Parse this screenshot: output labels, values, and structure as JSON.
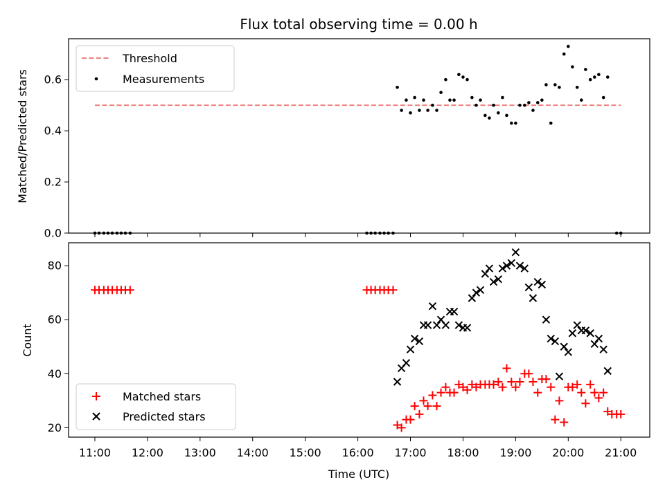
{
  "chart_data": [
    {
      "type": "scatter",
      "title": "Flux total observing time = 0.00 h",
      "xlabel": "",
      "ylabel": "Matched/Predicted stars",
      "xlim": [
        10.5,
        21.55
      ],
      "ylim": [
        0.0,
        0.76
      ],
      "yticks": [
        0.0,
        0.2,
        0.4,
        0.6
      ],
      "ytick_labels": [
        "0.0",
        "0.2",
        "0.4",
        "0.6"
      ],
      "legend_position": "upper-left",
      "threshold": {
        "name": "Threshold",
        "y": 0.5,
        "x_range": [
          11.0,
          21.0
        ],
        "color": "#f08080"
      },
      "series": [
        {
          "name": "Measurements",
          "color": "#000000",
          "x": [
            11.0,
            11.08,
            11.17,
            11.25,
            11.33,
            11.42,
            11.5,
            11.58,
            11.67,
            16.17,
            16.25,
            16.33,
            16.42,
            16.5,
            16.58,
            16.67,
            16.75,
            16.83,
            16.92,
            17.0,
            17.08,
            17.17,
            17.25,
            17.33,
            17.42,
            17.5,
            17.58,
            17.67,
            17.75,
            17.83,
            17.92,
            18.0,
            18.08,
            18.17,
            18.25,
            18.33,
            18.42,
            18.5,
            18.58,
            18.67,
            18.75,
            18.83,
            18.92,
            19.0,
            19.08,
            19.17,
            19.25,
            19.33,
            19.42,
            19.5,
            19.58,
            19.67,
            19.75,
            19.83,
            19.92,
            20.0,
            20.08,
            20.17,
            20.25,
            20.33,
            20.42,
            20.5,
            20.58,
            20.67,
            20.75,
            20.92,
            21.0
          ],
          "y": [
            0.0,
            0.0,
            0.0,
            0.0,
            0.0,
            0.0,
            0.0,
            0.0,
            0.0,
            0.0,
            0.0,
            0.0,
            0.0,
            0.0,
            0.0,
            0.0,
            0.57,
            0.48,
            0.52,
            0.47,
            0.53,
            0.48,
            0.52,
            0.48,
            0.5,
            0.48,
            0.55,
            0.6,
            0.52,
            0.52,
            0.62,
            0.61,
            0.6,
            0.53,
            0.5,
            0.52,
            0.46,
            0.45,
            0.5,
            0.47,
            0.53,
            0.46,
            0.43,
            0.43,
            0.5,
            0.5,
            0.51,
            0.48,
            0.51,
            0.52,
            0.58,
            0.43,
            0.58,
            0.57,
            0.7,
            0.73,
            0.65,
            0.57,
            0.52,
            0.64,
            0.6,
            0.61,
            0.62,
            0.53,
            0.61,
            0.0,
            0.0
          ]
        }
      ]
    },
    {
      "type": "scatter",
      "title": "",
      "xlabel": "Time (UTC)",
      "ylabel": "Count",
      "xlim": [
        10.5,
        21.55
      ],
      "ylim": [
        16.5,
        88.5
      ],
      "yticks": [
        20,
        40,
        60,
        80
      ],
      "ytick_labels": [
        "20",
        "40",
        "60",
        "80"
      ],
      "xticks": [
        11,
        12,
        13,
        14,
        15,
        16,
        17,
        18,
        19,
        20,
        21
      ],
      "xtick_labels": [
        "11:00",
        "12:00",
        "13:00",
        "14:00",
        "15:00",
        "16:00",
        "17:00",
        "18:00",
        "19:00",
        "20:00",
        "21:00"
      ],
      "legend_position": "lower-left",
      "series": [
        {
          "name": "Matched stars",
          "marker": "plus",
          "color": "#ff0000",
          "x": [
            11.0,
            11.08,
            11.17,
            11.25,
            11.33,
            11.42,
            11.5,
            11.58,
            11.67,
            16.17,
            16.25,
            16.33,
            16.42,
            16.5,
            16.58,
            16.67,
            16.75,
            16.83,
            16.92,
            17.0,
            17.08,
            17.17,
            17.25,
            17.33,
            17.42,
            17.5,
            17.58,
            17.67,
            17.75,
            17.83,
            17.92,
            18.0,
            18.08,
            18.17,
            18.25,
            18.33,
            18.42,
            18.5,
            18.58,
            18.67,
            18.75,
            18.83,
            18.92,
            19.0,
            19.08,
            19.17,
            19.25,
            19.33,
            19.42,
            19.5,
            19.58,
            19.67,
            19.75,
            19.83,
            19.92,
            20.0,
            20.08,
            20.17,
            20.25,
            20.33,
            20.42,
            20.5,
            20.58,
            20.67,
            20.75,
            20.83,
            20.92,
            21.0
          ],
          "y": [
            71,
            71,
            71,
            71,
            71,
            71,
            71,
            71,
            71,
            71,
            71,
            71,
            71,
            71,
            71,
            71,
            21,
            20,
            23,
            23,
            28,
            25,
            30,
            28,
            32,
            28,
            33,
            35,
            33,
            33,
            36,
            35,
            34,
            36,
            35,
            36,
            36,
            36,
            36,
            37,
            35,
            42,
            37,
            35,
            37,
            40,
            40,
            37,
            33,
            38,
            38,
            35,
            23,
            30,
            22,
            35,
            35,
            36,
            33,
            29,
            36,
            33,
            31,
            33,
            26,
            25,
            25,
            25
          ]
        },
        {
          "name": "Predicted stars",
          "marker": "x",
          "color": "#000000",
          "x": [
            16.75,
            16.83,
            16.92,
            17.0,
            17.08,
            17.17,
            17.25,
            17.33,
            17.42,
            17.5,
            17.58,
            17.67,
            17.75,
            17.83,
            17.92,
            18.0,
            18.08,
            18.17,
            18.25,
            18.33,
            18.42,
            18.5,
            18.58,
            18.67,
            18.75,
            18.83,
            18.92,
            19.0,
            19.08,
            19.17,
            19.25,
            19.33,
            19.42,
            19.5,
            19.58,
            19.67,
            19.75,
            19.83,
            19.92,
            20.0,
            20.08,
            20.17,
            20.25,
            20.33,
            20.42,
            20.5,
            20.58,
            20.67,
            20.75
          ],
          "y": [
            37,
            42,
            44,
            49,
            53,
            52,
            58,
            58,
            65,
            58,
            60,
            58,
            63,
            63,
            58,
            57,
            57,
            68,
            70,
            71,
            77,
            79,
            74,
            75,
            79,
            80,
            81,
            85,
            80,
            79,
            72,
            68,
            74,
            73,
            60,
            53,
            52,
            39,
            50,
            48,
            55,
            58,
            56,
            56,
            55,
            51,
            53,
            49,
            41
          ]
        }
      ]
    }
  ]
}
